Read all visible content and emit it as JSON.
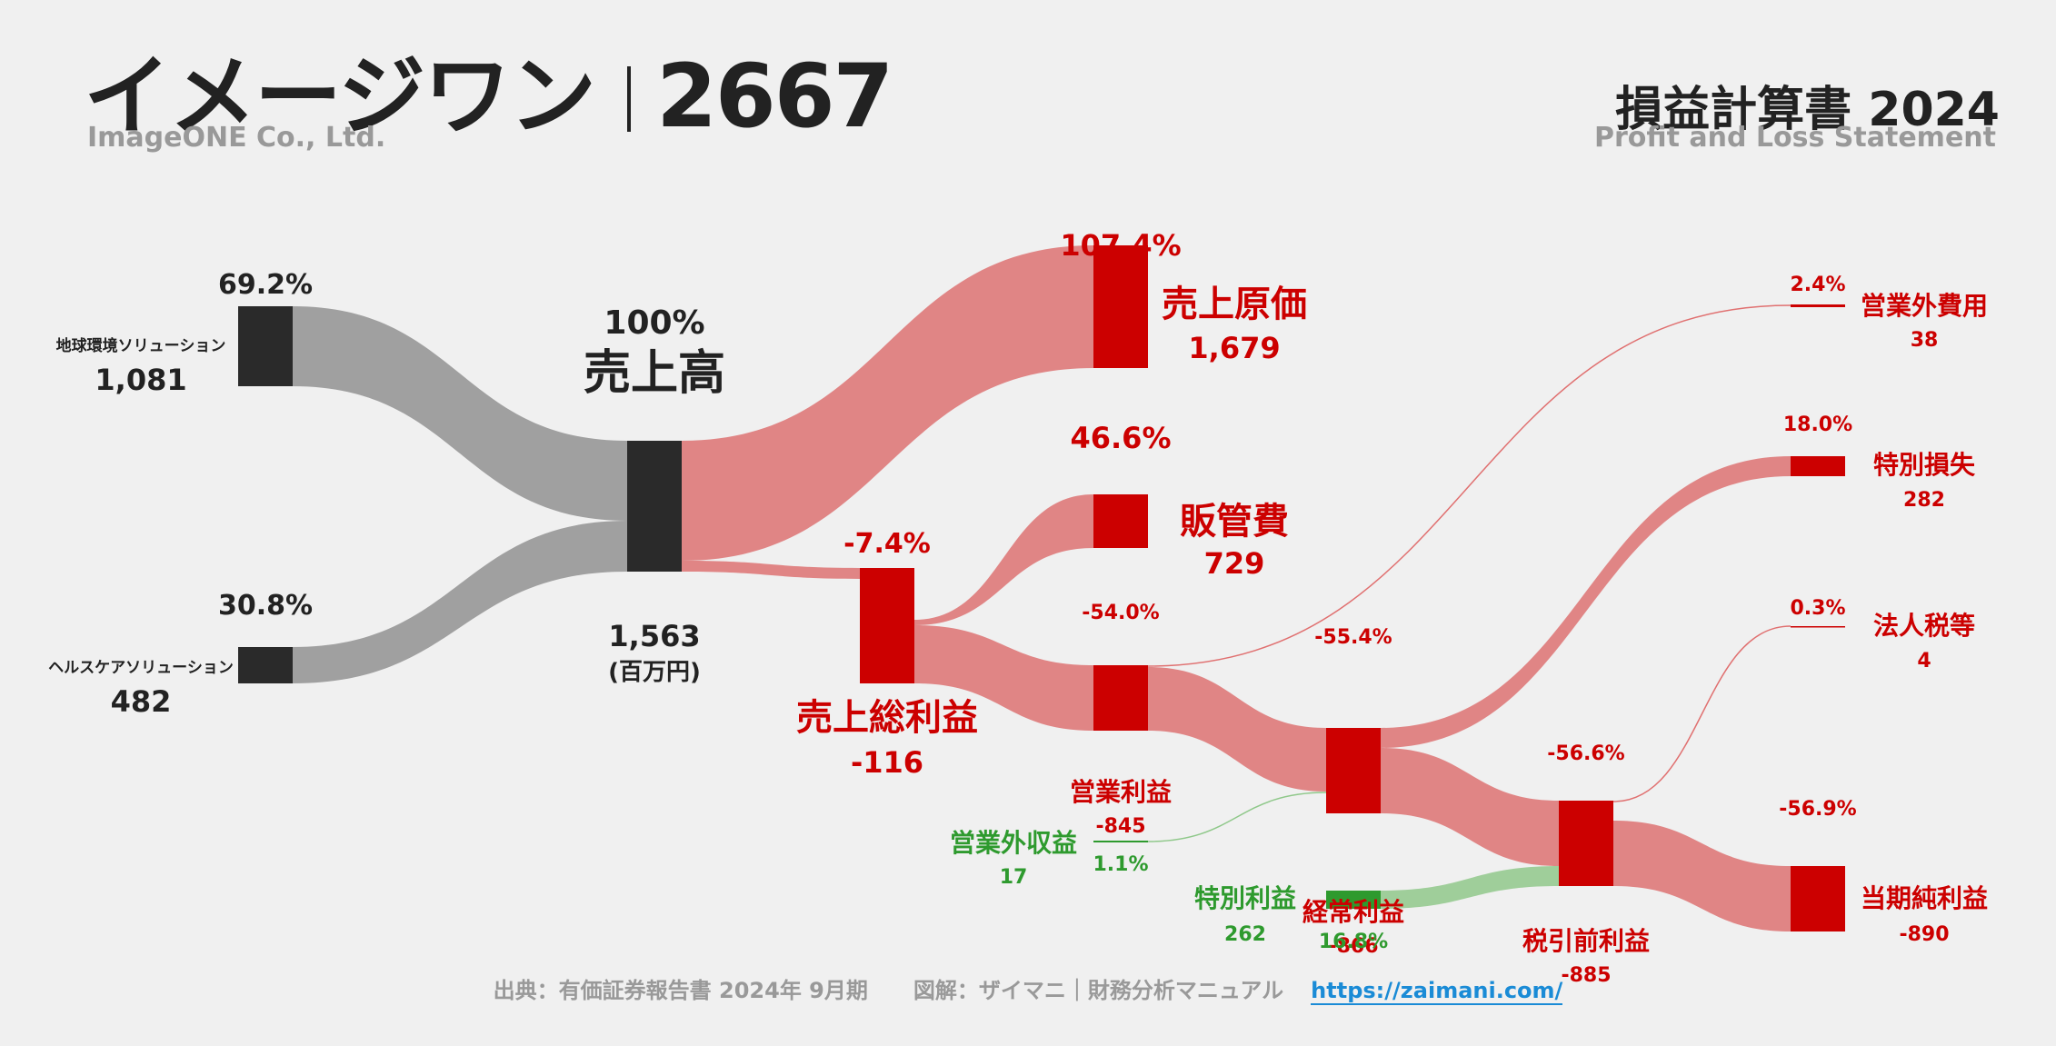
{
  "header": {
    "company_jp": "イメージワン",
    "ticker": "2667",
    "company_en": "ImageONE Co., Ltd.",
    "statement_jp": "損益計算書 2024",
    "statement_en": "Profit and Loss Statement"
  },
  "footer": {
    "source": "出典：有価証券報告書 2024年 9月期",
    "credit": "図解：ザイマニ｜財務分析マニュアル",
    "url": "https://zaimani.com/"
  },
  "colors": {
    "dark": "#2a2a2a",
    "gray_flow": "#a0a0a0",
    "red": "#cc0000",
    "red_flow": "#e08585",
    "green": "#2e9a2e",
    "green_flow": "#9fce9a"
  },
  "chart_data": {
    "type": "sankey",
    "unit": "(百万円)",
    "nodes": [
      {
        "id": "seg1",
        "name": "地球環境ソリューション",
        "value": "1,081",
        "pct": "69.2%",
        "color": "dark"
      },
      {
        "id": "seg2",
        "name": "ヘルスケアソリューション",
        "value": "482",
        "pct": "30.8%",
        "color": "dark"
      },
      {
        "id": "revenue",
        "name": "売上高",
        "value": "1,563",
        "pct": "100%",
        "color": "dark"
      },
      {
        "id": "cogs",
        "name": "売上原価",
        "value": "1,679",
        "pct": "107.4%",
        "color": "red"
      },
      {
        "id": "gross",
        "name": "売上総利益",
        "value": "-116",
        "pct": "-7.4%",
        "color": "red"
      },
      {
        "id": "sga",
        "name": "販管費",
        "value": "729",
        "pct": "46.6%",
        "color": "red"
      },
      {
        "id": "op",
        "name": "営業利益",
        "value": "-845",
        "pct": "-54.0%",
        "color": "red"
      },
      {
        "id": "nonop_inc",
        "name": "営業外収益",
        "value": "17",
        "pct": "1.1%",
        "color": "green"
      },
      {
        "id": "nonop_exp",
        "name": "営業外費用",
        "value": "38",
        "pct": "2.4%",
        "color": "red"
      },
      {
        "id": "ordinary",
        "name": "経常利益",
        "value": "-866",
        "pct": "-55.4%",
        "color": "red"
      },
      {
        "id": "sp_gain",
        "name": "特別利益",
        "value": "262",
        "pct": "16.8%",
        "color": "green"
      },
      {
        "id": "sp_loss",
        "name": "特別損失",
        "value": "282",
        "pct": "18.0%",
        "color": "red"
      },
      {
        "id": "pretax",
        "name": "税引前利益",
        "value": "-885",
        "pct": "-56.6%",
        "color": "red"
      },
      {
        "id": "tax",
        "name": "法人税等",
        "value": "4",
        "pct": "0.3%",
        "color": "red"
      },
      {
        "id": "net",
        "name": "当期純利益",
        "value": "-890",
        "pct": "-56.9%",
        "color": "red"
      }
    ],
    "links": [
      {
        "source": "seg1",
        "target": "revenue",
        "value": 1081
      },
      {
        "source": "seg2",
        "target": "revenue",
        "value": 482
      },
      {
        "source": "revenue",
        "target": "cogs",
        "value": 1563
      },
      {
        "source": "revenue",
        "target": "gross",
        "value": 116
      },
      {
        "source": "gross",
        "target": "sga",
        "value": 729
      },
      {
        "source": "gross",
        "target": "op",
        "value": 845
      },
      {
        "source": "op",
        "target": "nonop_exp",
        "value": 38
      },
      {
        "source": "op",
        "target": "ordinary",
        "value": 845
      },
      {
        "source": "nonop_inc",
        "target": "ordinary",
        "value": 17
      },
      {
        "source": "ordinary",
        "target": "sp_loss",
        "value": 282
      },
      {
        "source": "ordinary",
        "target": "pretax",
        "value": 866
      },
      {
        "source": "sp_gain",
        "target": "pretax",
        "value": 262
      },
      {
        "source": "pretax",
        "target": "tax",
        "value": 4
      },
      {
        "source": "pretax",
        "target": "net",
        "value": 885
      }
    ]
  }
}
